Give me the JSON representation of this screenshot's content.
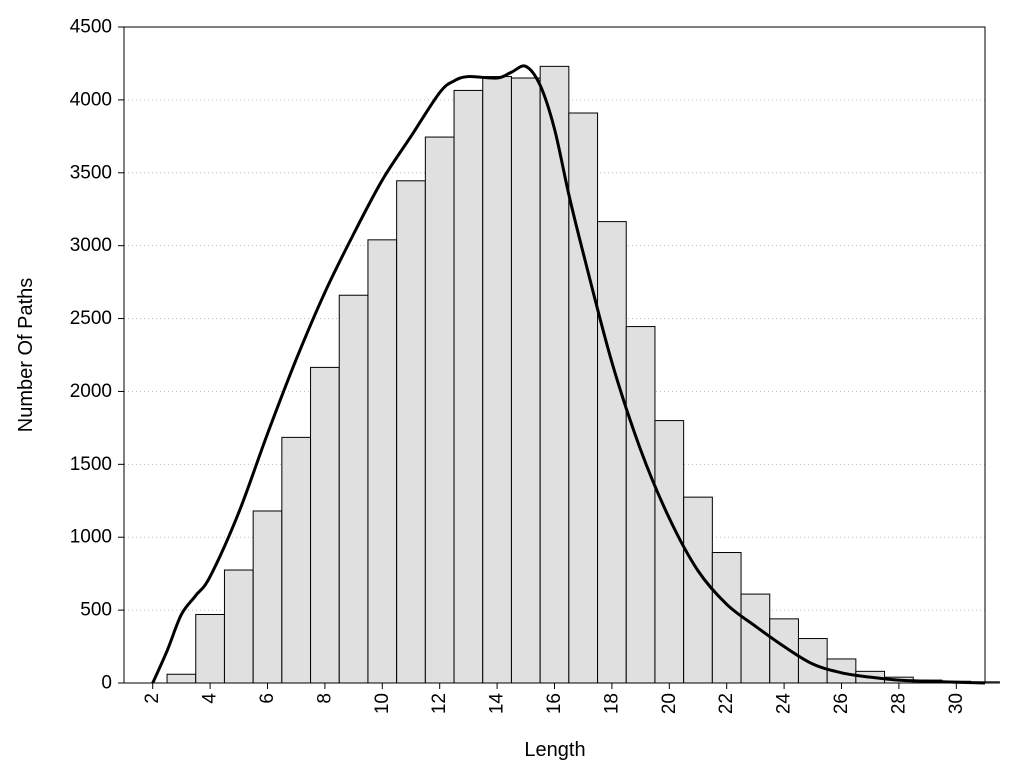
{
  "chart_data": {
    "type": "bar",
    "xlabel": "Length",
    "ylabel": "Number Of Paths",
    "xlim": [
      1,
      31
    ],
    "ylim": [
      0,
      4500
    ],
    "x_ticks": [
      2,
      4,
      6,
      8,
      10,
      12,
      14,
      16,
      18,
      20,
      22,
      24,
      26,
      28,
      30
    ],
    "y_ticks": [
      0,
      500,
      1000,
      1500,
      2000,
      2500,
      3000,
      3500,
      4000,
      4500
    ],
    "grid": "horizontal dotted",
    "bar_fill": "#e0e0e0",
    "bar_edge": "#000000",
    "curve_color": "#000000",
    "categories": [
      2,
      3,
      4,
      5,
      6,
      7,
      8,
      9,
      10,
      11,
      12,
      13,
      14,
      15,
      16,
      17,
      18,
      19,
      20,
      21,
      22,
      23,
      24,
      25,
      26,
      27,
      28,
      29,
      30
    ],
    "values": [
      60,
      470,
      775,
      1180,
      1685,
      2165,
      2660,
      3040,
      3445,
      3745,
      4065,
      4160,
      4150,
      4230,
      3910,
      3165,
      2445,
      1800,
      1275,
      895,
      610,
      440,
      305,
      165,
      80,
      40,
      20,
      12,
      8
    ],
    "curve": {
      "x": [
        2.0,
        2.5,
        3.0,
        3.5,
        4.0,
        5.0,
        6.0,
        7.0,
        8.0,
        9.0,
        10.0,
        11.0,
        12.0,
        12.5,
        13.0,
        14.0,
        14.5,
        15.0,
        15.5,
        16.0,
        16.5,
        17.0,
        18.0,
        19.0,
        20.0,
        21.0,
        22.0,
        23.0,
        24.0,
        25.0,
        26.0,
        27.0,
        28.0,
        29.0,
        30.0,
        31.0
      ],
      "y": [
        0,
        220,
        470,
        600,
        730,
        1170,
        1710,
        2220,
        2680,
        3080,
        3450,
        3750,
        4050,
        4130,
        4160,
        4150,
        4190,
        4230,
        4100,
        3800,
        3350,
        2950,
        2200,
        1600,
        1130,
        770,
        540,
        390,
        250,
        130,
        70,
        40,
        20,
        12,
        5,
        0
      ]
    }
  }
}
